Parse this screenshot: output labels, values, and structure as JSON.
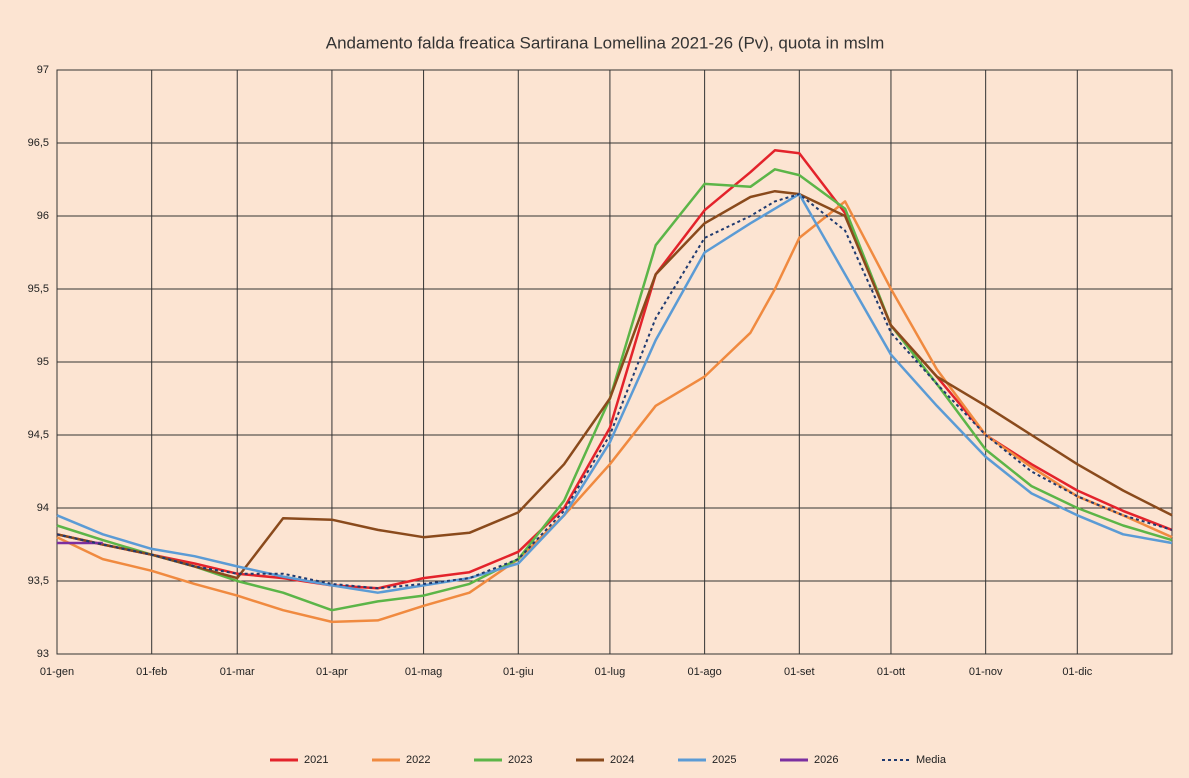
{
  "chart_data": {
    "type": "line",
    "title": "Andamento  falda freatica Sartirana Lomellina 2021-26 (Pv), quota in mslm",
    "x": [
      0,
      15,
      31,
      45,
      59,
      74,
      90,
      105,
      120,
      135,
      151,
      166,
      181,
      196,
      212,
      227,
      235,
      243,
      258,
      273,
      288,
      304,
      319,
      334,
      349,
      365
    ],
    "xlim": [
      0,
      365
    ],
    "xticks": [
      {
        "value": 0,
        "label": "01-gen"
      },
      {
        "value": 31,
        "label": "01-feb"
      },
      {
        "value": 59,
        "label": "01-mar"
      },
      {
        "value": 90,
        "label": "01-apr"
      },
      {
        "value": 120,
        "label": "01-mag"
      },
      {
        "value": 151,
        "label": "01-giu"
      },
      {
        "value": 181,
        "label": "01-lug"
      },
      {
        "value": 212,
        "label": "01-ago"
      },
      {
        "value": 243,
        "label": "01-set"
      },
      {
        "value": 273,
        "label": "01-ott"
      },
      {
        "value": 304,
        "label": "01-nov"
      },
      {
        "value": 334,
        "label": "01-dic"
      }
    ],
    "ylim": [
      93,
      97
    ],
    "yticks": [
      93,
      {
        "value": 93.5,
        "label": "93,5"
      },
      94,
      {
        "value": 94.5,
        "label": "94,5"
      },
      95,
      {
        "value": 95.5,
        "label": "95,5"
      },
      96,
      {
        "value": 96.5,
        "label": "96,5"
      },
      97
    ],
    "grid": true,
    "legend": "bottom",
    "series": [
      {
        "name": "2021",
        "color": "#e3232b",
        "values": [
          93.82,
          93.75,
          93.68,
          93.62,
          93.55,
          93.52,
          93.47,
          93.45,
          93.52,
          93.56,
          93.7,
          94.0,
          94.55,
          95.6,
          96.04,
          96.3,
          96.45,
          96.43,
          96.02,
          95.25,
          94.9,
          94.5,
          94.3,
          94.12,
          93.98,
          93.85
        ]
      },
      {
        "name": "2022",
        "color": "#f08a40",
        "values": [
          93.8,
          93.65,
          93.57,
          93.48,
          93.4,
          93.3,
          93.22,
          93.23,
          93.33,
          93.42,
          93.65,
          93.95,
          94.3,
          94.7,
          94.9,
          95.2,
          95.5,
          95.85,
          96.1,
          95.5,
          94.95,
          94.5,
          94.28,
          94.08,
          93.95,
          93.8
        ]
      },
      {
        "name": "2023",
        "color": "#5cb548",
        "values": [
          93.88,
          93.78,
          93.68,
          93.6,
          93.5,
          93.42,
          93.3,
          93.36,
          93.4,
          93.48,
          93.65,
          94.05,
          94.75,
          95.8,
          96.22,
          96.2,
          96.32,
          96.28,
          96.05,
          95.25,
          94.85,
          94.4,
          94.15,
          94.0,
          93.88,
          93.78
        ]
      },
      {
        "name": "2024",
        "color": "#8a4a1c",
        "values": [
          93.82,
          93.75,
          93.68,
          93.6,
          93.52,
          93.93,
          93.92,
          93.85,
          93.8,
          93.83,
          93.97,
          94.3,
          94.75,
          95.6,
          95.95,
          96.13,
          96.17,
          96.15,
          96.0,
          95.25,
          94.9,
          94.7,
          94.5,
          94.3,
          94.12,
          93.95
        ]
      },
      {
        "name": "2025",
        "color": "#5b9bd5",
        "values": [
          93.95,
          93.82,
          93.72,
          93.67,
          93.6,
          93.53,
          93.47,
          93.42,
          93.47,
          93.52,
          93.62,
          93.95,
          94.45,
          95.15,
          95.75,
          95.95,
          96.05,
          96.15,
          95.6,
          95.05,
          94.7,
          94.35,
          94.1,
          93.95,
          93.82,
          93.76
        ]
      },
      {
        "name": "2026",
        "color": "#7b2fa0",
        "values": [
          93.76,
          93.76,
          null,
          null,
          null,
          null,
          null,
          null,
          null,
          null,
          null,
          null,
          null,
          null,
          null,
          null,
          null,
          null,
          null,
          null,
          null,
          null,
          null,
          null,
          null,
          null
        ]
      },
      {
        "name": "Media",
        "color": "#1f3a70",
        "style": "dotted",
        "values": [
          93.82,
          93.75,
          93.68,
          93.6,
          93.55,
          93.55,
          93.48,
          93.45,
          93.48,
          93.52,
          93.65,
          93.98,
          94.5,
          95.3,
          95.85,
          96.0,
          96.1,
          96.15,
          95.9,
          95.2,
          94.85,
          94.5,
          94.25,
          94.08,
          93.95,
          93.85
        ]
      }
    ]
  }
}
